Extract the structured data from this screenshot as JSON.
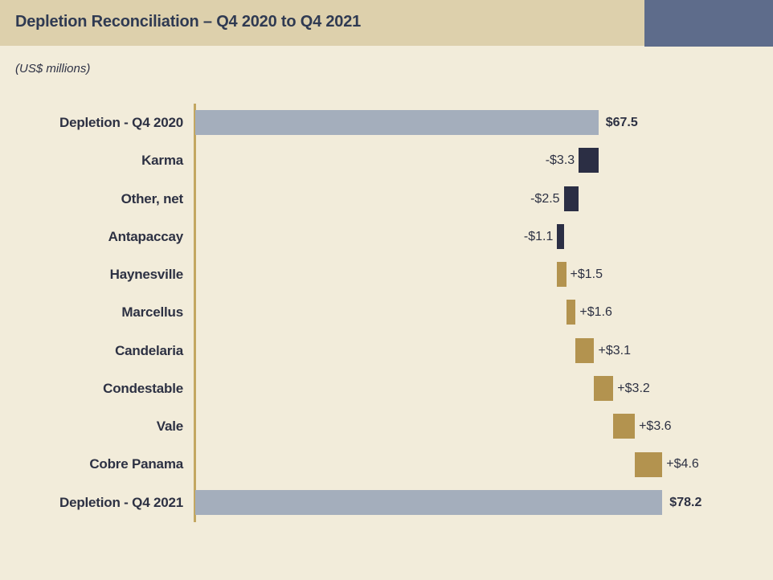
{
  "header": {
    "title": "Depletion Reconciliation – Q4 2020 to Q4 2021",
    "units_note": "(US$ millions)",
    "band_color": "#ddd0ac",
    "corner_accent_color": "#5e6c8b",
    "title_color": "#2f3a52"
  },
  "chart_data": {
    "type": "bar",
    "subtype": "waterfall",
    "orientation": "horizontal",
    "title": "Depletion Reconciliation – Q4 2020 to Q4 2021",
    "units": "US$ millions",
    "axis_range": [
      0,
      92
    ],
    "grid": false,
    "legend": false,
    "categories": [
      "Depletion - Q4 2020",
      "Karma",
      "Other, net",
      "Antapaccay",
      "Haynesville",
      "Marcellus",
      "Candelaria",
      "Condestable",
      "Vale",
      "Cobre Panama",
      "Depletion - Q4 2021"
    ],
    "values": [
      67.5,
      -3.3,
      -2.5,
      -1.1,
      1.5,
      1.6,
      3.1,
      3.2,
      3.6,
      4.6,
      78.2
    ],
    "items": [
      {
        "label": "Depletion - Q4 2020",
        "value": 67.5,
        "display": "$67.5",
        "kind": "total"
      },
      {
        "label": "Karma",
        "value": -3.3,
        "display": "-$3.3",
        "kind": "decrease"
      },
      {
        "label": "Other, net",
        "value": -2.5,
        "display": "-$2.5",
        "kind": "decrease"
      },
      {
        "label": "Antapaccay",
        "value": -1.1,
        "display": "-$1.1",
        "kind": "decrease"
      },
      {
        "label": "Haynesville",
        "value": 1.5,
        "display": "+$1.5",
        "kind": "increase"
      },
      {
        "label": "Marcellus",
        "value": 1.6,
        "display": "+$1.6",
        "kind": "increase"
      },
      {
        "label": "Candelaria",
        "value": 3.1,
        "display": "+$3.1",
        "kind": "increase"
      },
      {
        "label": "Condestable",
        "value": 3.2,
        "display": "+$3.2",
        "kind": "increase"
      },
      {
        "label": "Vale",
        "value": 3.6,
        "display": "+$3.6",
        "kind": "increase"
      },
      {
        "label": "Cobre Panama",
        "value": 4.6,
        "display": "+$4.6",
        "kind": "increase"
      },
      {
        "label": "Depletion - Q4 2021",
        "value": 78.2,
        "display": "$78.2",
        "kind": "total"
      }
    ],
    "colors": {
      "total": "#a4aebc",
      "decrease": "#2b2e44",
      "increase": "#b3934f",
      "axis": "#c3a761",
      "label_text": "#2d3143",
      "background": "#f2ecda"
    }
  }
}
